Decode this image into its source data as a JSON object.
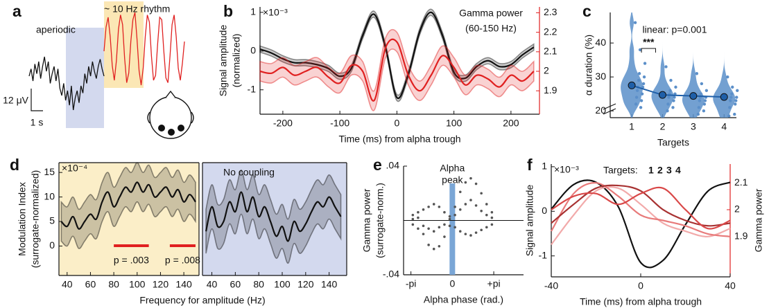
{
  "chart_data": [
    {
      "panel": "a",
      "type": "trace",
      "annotations": [
        "aperiodic",
        "~ 10 Hz rhythm"
      ],
      "scale_labels": [
        "12 μV",
        "1 s"
      ],
      "series": [
        {
          "color": "#111111",
          "values": [
            0,
            3,
            -2,
            5,
            1,
            6,
            -1,
            4,
            8,
            2,
            6,
            -3,
            1,
            4,
            -2,
            3,
            -5,
            -8,
            -3,
            -10,
            -6,
            -12,
            -4,
            -14,
            -9,
            -6,
            -11,
            -4,
            -7,
            1,
            -3,
            4,
            0,
            6,
            2,
            -1,
            4,
            7,
            3,
            0
          ]
        },
        {
          "color": "#e02020",
          "values": [
            0,
            10,
            14,
            6,
            -6,
            -12,
            -4,
            9,
            15,
            11,
            -3,
            -13,
            -9,
            4,
            13,
            16,
            5,
            -8,
            -14,
            -7,
            6,
            15,
            12,
            -2,
            -12,
            -10,
            3,
            14,
            13,
            0,
            -11,
            -13,
            -2,
            11,
            15,
            6,
            -7,
            -12,
            -5,
            4
          ]
        }
      ]
    },
    {
      "panel": "b",
      "type": "line",
      "xlabel": "Time (ms) from alpha trough",
      "ylabel": [
        "Signal amplitude",
        "(normalized)"
      ],
      "y_multiplier": "×10⁻³",
      "y2label": [
        "Gamma power",
        "(60-150 Hz)"
      ],
      "x": [
        -240,
        -220,
        -200,
        -180,
        -160,
        -140,
        -120,
        -100,
        -80,
        -60,
        -40,
        -20,
        0,
        20,
        40,
        60,
        80,
        100,
        120,
        140,
        160,
        180,
        200,
        220,
        240
      ],
      "xlim": [
        -240,
        250
      ],
      "xticks": [
        -200,
        -100,
        0,
        100,
        200
      ],
      "ylim": [
        -1.63,
        1.14
      ],
      "yticks": [
        -1,
        0,
        1
      ],
      "y2lim": [
        1.78,
        2.33
      ],
      "y2ticks": [
        1.9,
        2,
        2.1,
        2.2,
        2.3
      ],
      "series": [
        {
          "color": "#111111",
          "error": 0.08,
          "values": [
            0.05,
            -0.05,
            -0.2,
            -0.3,
            -0.3,
            -0.35,
            -0.45,
            -0.65,
            -0.45,
            0.4,
            0.95,
            0.1,
            -1.2,
            -0.6,
            0.5,
            1.0,
            0.4,
            -0.55,
            -0.7,
            -0.4,
            -0.25,
            -0.4,
            -0.35,
            -0.1,
            0.1
          ]
        },
        {
          "axis": "y2",
          "color": "#e02020",
          "error": 0.05,
          "values": [
            2.0,
            1.99,
            2.02,
            1.98,
            2.0,
            2.02,
            1.97,
            1.94,
            2.03,
            2.0,
            1.85,
            2.12,
            2.15,
            1.98,
            1.9,
            1.98,
            2.08,
            2.02,
            1.93,
            1.98,
            1.96,
            1.92,
            1.98,
            1.95,
            2.0
          ]
        }
      ]
    },
    {
      "panel": "c",
      "type": "violin",
      "xlabel": "Targets",
      "ylabel": "α duration (%)",
      "annotation": "linear: p=0.001",
      "significance": "***",
      "x": [
        1,
        2,
        3,
        4
      ],
      "xlim": [
        0.3,
        4.4
      ],
      "xticks": [
        1,
        2,
        3,
        4
      ],
      "ylim": [
        18,
        49
      ],
      "yticks": [
        20,
        30,
        40
      ],
      "color": "#5b8fc9",
      "line_color": "#1f5fa8",
      "means": [
        27.5,
        24.7,
        24.4,
        24.1
      ],
      "points": [
        [
          46,
          38,
          34,
          31,
          30,
          29,
          28,
          27,
          27,
          26,
          25,
          24,
          23,
          22,
          21
        ],
        [
          33,
          29,
          27,
          26,
          25,
          25,
          24,
          24,
          23,
          22,
          21,
          20
        ],
        [
          31,
          28,
          26,
          25,
          24,
          24,
          23,
          23,
          22,
          21,
          20,
          19
        ],
        [
          30,
          27,
          26,
          25,
          24,
          24,
          23,
          23,
          22,
          21,
          19,
          18.5
        ]
      ]
    },
    {
      "panel": "d",
      "type": "line",
      "xlabel": "Frequency for amplitude (Hz)",
      "ylabel": [
        "Modulation Index",
        "(surrogate-normalized)"
      ],
      "y_multiplier": "×10⁻⁴",
      "background": "#fbeec8",
      "x": [
        35,
        40,
        45,
        50,
        55,
        60,
        65,
        70,
        75,
        80,
        85,
        90,
        95,
        100,
        105,
        110,
        115,
        120,
        125,
        130,
        135,
        140,
        145,
        150
      ],
      "xlim": [
        33,
        153
      ],
      "xticks": [
        40,
        60,
        80,
        100,
        120,
        140
      ],
      "ylim": [
        -6,
        17
      ],
      "yticks": [
        0,
        5,
        10,
        15
      ],
      "series": [
        {
          "color": "#111111",
          "error": 4,
          "values": [
            5,
            4,
            6,
            3.5,
            5,
            6.5,
            5.5,
            9,
            11,
            8,
            10,
            12,
            11,
            13,
            11,
            12.5,
            10,
            11,
            12,
            10,
            11.5,
            9,
            10.5,
            9
          ]
        }
      ],
      "significance": [
        {
          "range": [
            80,
            110
          ],
          "label": "p = .003"
        },
        {
          "range": [
            128,
            150
          ],
          "label": "p = .008"
        }
      ]
    },
    {
      "type": "line",
      "annotation": "No coupling",
      "background": "#d3d9ee",
      "x": [
        35,
        40,
        45,
        50,
        55,
        60,
        65,
        70,
        75,
        80,
        85,
        90,
        95,
        100,
        105,
        110,
        115,
        120,
        125,
        130,
        135,
        140,
        145,
        150
      ],
      "xlim": [
        32,
        155
      ],
      "xticks": [
        40,
        60,
        80,
        100,
        120,
        140
      ],
      "ylim": [
        -6,
        17
      ],
      "series": [
        {
          "color": "#111111",
          "error": 4.5,
          "values": [
            3,
            8,
            4,
            5,
            9,
            7,
            11,
            7,
            10,
            6,
            8,
            5,
            2,
            4,
            1,
            5,
            3,
            4.5,
            7,
            9,
            8,
            10,
            8,
            6
          ]
        }
      ]
    },
    {
      "panel": "e",
      "type": "scatter",
      "xlabel": "Alpha phase (rad.)",
      "ylabel": [
        "Gamma power",
        "(surrogate-norm.)"
      ],
      "annotation": [
        "Alpha",
        "peak"
      ],
      "highlight_x": 0,
      "xlim": [
        -3.7,
        5.4
      ],
      "xticks": [
        {
          "value": -3.1416,
          "label": "-pi"
        },
        0,
        {
          "value": 3.1416,
          "label": "+pi"
        }
      ],
      "ylim": [
        -0.04,
        0.04
      ],
      "yticks": [
        {
          "value": -0.04,
          "label": "-.04"
        },
        {
          "value": 0.04,
          "label": ".04"
        }
      ],
      "color": "#555555",
      "x": [
        -3.0,
        -3.0,
        -3.0,
        -2.6,
        -2.6,
        -2.6,
        -2.2,
        -2.2,
        -2.2,
        -1.8,
        -1.8,
        -1.8,
        -1.4,
        -1.4,
        -1.4,
        -1.0,
        -1.0,
        -1.0,
        -0.6,
        -0.6,
        -0.6,
        -0.2,
        -0.2,
        -0.2,
        0.2,
        0.2,
        0.2,
        0.6,
        0.6,
        0.6,
        1.0,
        1.0,
        1.0,
        1.4,
        1.4,
        1.4,
        1.8,
        1.8,
        1.8,
        2.2,
        2.2,
        2.2,
        2.6,
        2.6,
        2.6,
        3.0,
        3.0,
        3.0
      ],
      "y": [
        0.004,
        -0.003,
        0.001,
        0.006,
        -0.006,
        0.002,
        -0.01,
        0.008,
        -0.004,
        -0.018,
        0.01,
        -0.006,
        -0.021,
        0.012,
        -0.008,
        -0.019,
        0.01,
        -0.005,
        -0.012,
        0.006,
        -0.003,
        0.003,
        -0.004,
        0.001,
        0.01,
        -0.005,
        0.004,
        0.021,
        -0.008,
        0.008,
        0.028,
        -0.01,
        0.012,
        0.031,
        -0.011,
        0.015,
        0.027,
        -0.009,
        0.011,
        0.02,
        -0.007,
        0.007,
        0.012,
        -0.005,
        0.004,
        0.006,
        -0.003,
        0.002
      ]
    },
    {
      "panel": "f",
      "type": "line",
      "xlabel": "Time (ms) from alpha trough",
      "ylabel": "Signal amplitude",
      "y_multiplier": "×10⁻³",
      "y2label": "Gamma power",
      "legend_title": "Targets:",
      "x": [
        -40,
        -30,
        -20,
        -10,
        0,
        10,
        20,
        30,
        40
      ],
      "xlim": [
        -40,
        40
      ],
      "xticks": [
        -40,
        0,
        40
      ],
      "ylim": [
        -1.47,
        1.06
      ],
      "yticks": [
        -1,
        0,
        1
      ],
      "y2lim": [
        1.75,
        2.17
      ],
      "y2ticks": [
        1.9,
        2,
        2.1
      ],
      "series": [
        {
          "color": "#111111",
          "values": [
            0.05,
            0.6,
            0.65,
            0.1,
            -1.15,
            -1.1,
            -0.3,
            0.45,
            0.65
          ]
        },
        {
          "name": "1",
          "axis": "y2",
          "color": "#f2aaaa",
          "values": [
            1.87,
            1.98,
            2.07,
            2.08,
            2.02,
            1.95,
            1.92,
            1.9,
            1.93
          ]
        },
        {
          "name": "2",
          "axis": "y2",
          "color": "#e87a7a",
          "values": [
            1.92,
            2.06,
            2.1,
            2.05,
            1.98,
            1.96,
            1.94,
            1.91,
            1.9
          ]
        },
        {
          "name": "3",
          "axis": "y2",
          "color": "#a83232",
          "values": [
            1.95,
            2.02,
            2.08,
            2.09,
            2.07,
            2.0,
            1.96,
            1.94,
            1.95
          ]
        },
        {
          "name": "4",
          "axis": "y2",
          "color": "#d94848",
          "values": [
            2.0,
            2.05,
            2.06,
            2.02,
            2.06,
            2.08,
            2.0,
            1.93,
            1.96
          ]
        }
      ]
    }
  ]
}
